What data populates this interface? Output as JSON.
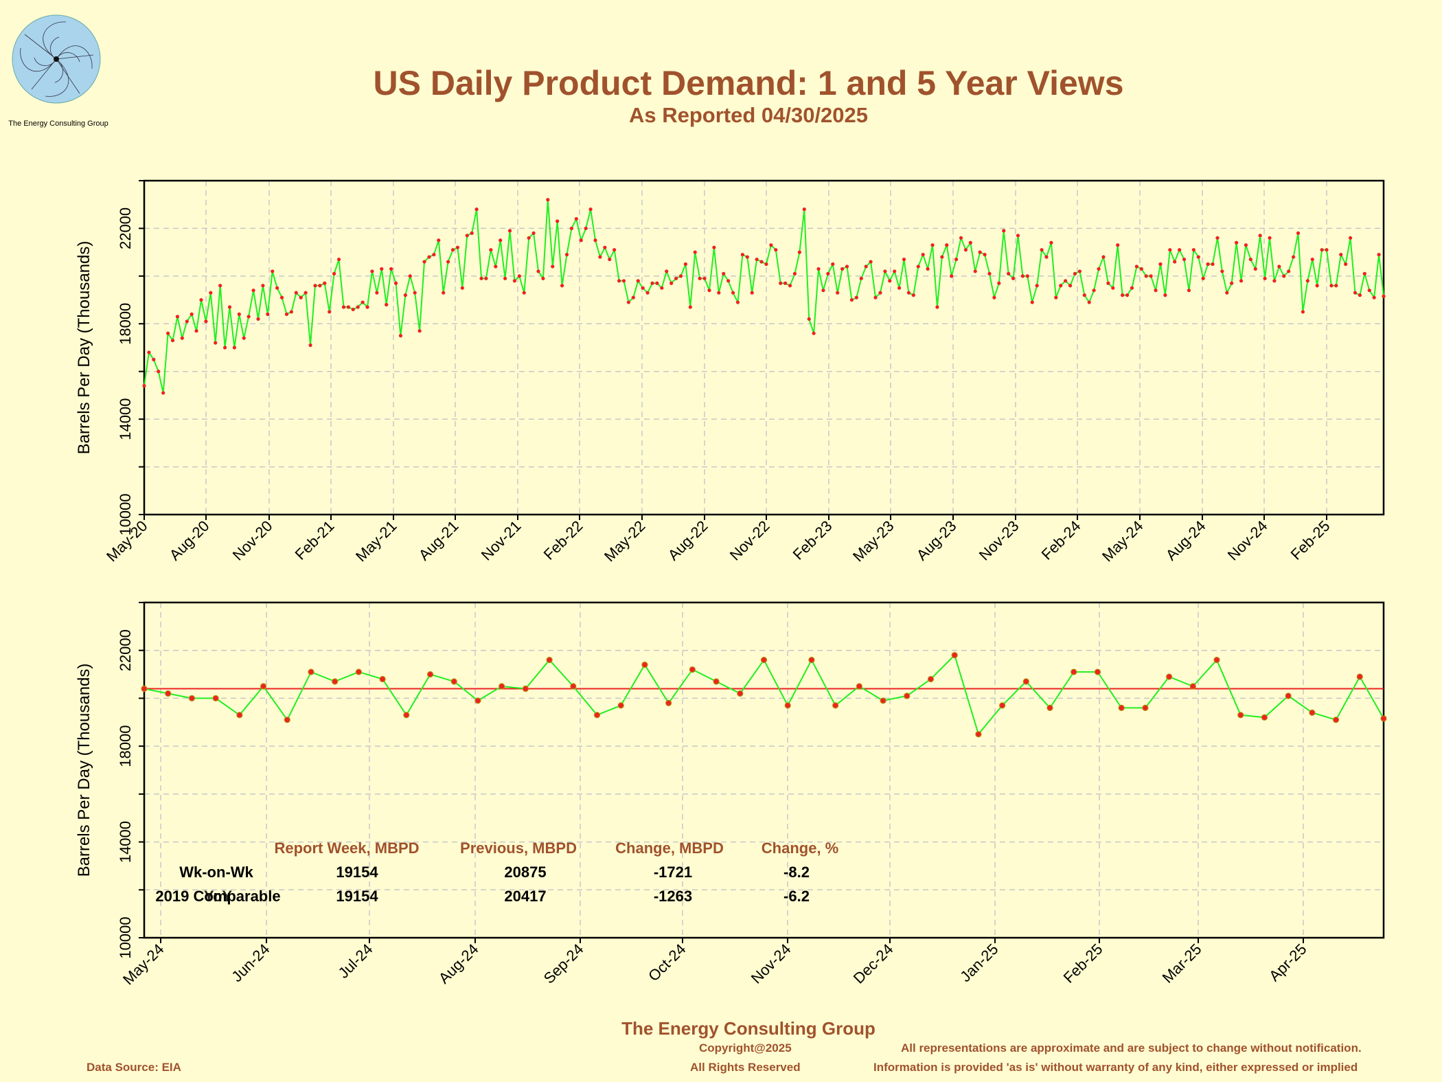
{
  "header": {
    "title": "US Daily Product Demand: 1 and 5 Year Views",
    "subtitle": "As Reported 04/30/2025"
  },
  "logo": {
    "text": "The Energy Consulting Group"
  },
  "colors": {
    "background": "#fffcd1",
    "line": "#22ee22",
    "marker": "#ee2222",
    "reference": "#ee2222",
    "accent": "#a0522d"
  },
  "chart_data": [
    {
      "type": "line",
      "title": "",
      "ylabel": "Barrels Per Day (Thousands)",
      "ylim": [
        10000,
        24000
      ],
      "yticks": [
        10000,
        14000,
        18000,
        22000
      ],
      "xlim": [
        0,
        60
      ],
      "xtick_labels": [
        "May-20",
        "Aug-20",
        "Nov-20",
        "Feb-21",
        "May-21",
        "Aug-21",
        "Nov-21",
        "Feb-22",
        "May-22",
        "Aug-22",
        "Nov-22",
        "Feb-23",
        "May-23",
        "Aug-23",
        "Nov-23",
        "Feb-24",
        "May-24",
        "Aug-24",
        "Nov-24",
        "Feb-25"
      ],
      "grid": true,
      "series": [
        {
          "values": [
            15400,
            16800,
            16500,
            16000,
            15100,
            17600,
            17300,
            18300,
            17400,
            18100,
            18400,
            17700,
            19000,
            18100,
            19300,
            17200,
            19600,
            17000,
            18700,
            17000,
            18400,
            17400,
            18300,
            19400,
            18200,
            19600,
            18400,
            20200,
            19500,
            19100,
            18400,
            18500,
            19300,
            19100,
            19300,
            17100,
            19600,
            19600,
            19700,
            18500,
            20100,
            20700,
            18700,
            18700,
            18600,
            18700,
            18900,
            18700,
            20200,
            19300,
            20300,
            18800,
            20300,
            19700,
            17500,
            19200,
            20000,
            19300,
            17700,
            20600,
            20800,
            20900,
            21500,
            19300,
            20600,
            21100,
            21200,
            19500,
            21700,
            21800,
            22800,
            19900,
            19900,
            21100,
            20400,
            21500,
            19900,
            21900,
            19800,
            20000,
            19300,
            21600,
            21800,
            20200,
            19900,
            23200,
            20400,
            22300,
            19600,
            20900,
            22000,
            22400,
            21500,
            22000,
            22800,
            21500,
            20800,
            21200,
            20700,
            21100,
            19800,
            19800,
            18900,
            19100,
            19800,
            19500,
            19300,
            19700,
            19700,
            19500,
            20200,
            19700,
            19900,
            20000,
            20500,
            18700,
            21000,
            19900,
            19900,
            19400,
            21200,
            19300,
            20100,
            19800,
            19300,
            18900,
            20900,
            20800,
            19300,
            20700,
            20600,
            20500,
            21300,
            21100,
            19700,
            19700,
            19600,
            20100,
            21000,
            22800,
            18200,
            17600,
            20300,
            19400,
            20100,
            20500,
            19300,
            20300,
            20400,
            19000,
            19100,
            19900,
            20400,
            20600,
            19100,
            19300,
            20200,
            19800,
            20200,
            19500,
            20700,
            19300,
            19200,
            20400,
            20900,
            20300,
            21300,
            18700,
            20800,
            21300,
            20000,
            20700,
            21600,
            21100,
            21400,
            20200,
            21000,
            20900,
            20100,
            19100,
            19700,
            21900,
            20100,
            19900,
            21700,
            20000,
            20000,
            18900,
            19600,
            21100,
            20800,
            21400,
            19100,
            19600,
            19800,
            19600,
            20100,
            20200,
            19200,
            18900,
            19400,
            20300,
            20800,
            19700,
            19500,
            21300,
            19200,
            19200,
            19500,
            20400,
            20300,
            20000,
            20000,
            19400,
            20500,
            19200,
            21100,
            20600,
            21100,
            20700,
            19400,
            21100,
            20800,
            19900,
            20500,
            20500,
            21600,
            20200,
            19300,
            19700,
            21400,
            19800,
            21300,
            20700,
            20300,
            21700,
            19900,
            21600,
            19800,
            20400,
            20000,
            20200,
            20800,
            21800,
            18500,
            19800,
            20700,
            19600,
            21100,
            21100,
            19600,
            19600,
            20900,
            20500,
            21600,
            19300,
            19200,
            20100,
            19400,
            19100,
            20900,
            19154
          ]
        }
      ]
    },
    {
      "type": "line",
      "title": "",
      "ylabel": "Barrels Per Day (Thousands)",
      "ylim": [
        10000,
        24000
      ],
      "yticks": [
        10000,
        14000,
        18000,
        22000
      ],
      "xlim": [
        0,
        51.5
      ],
      "xtick_labels": [
        "May-24",
        "Jun-24",
        "Jul-24",
        "Aug-24",
        "Sep-24",
        "Oct-24",
        "Nov-24",
        "Dec-24",
        "Jan-25",
        "Feb-25",
        "Mar-25",
        "Apr-25"
      ],
      "reference_line": 20400,
      "grid": true,
      "series": [
        {
          "values": [
            20400,
            20200,
            20000,
            20000,
            19300,
            20500,
            19100,
            21100,
            20700,
            21100,
            20800,
            19300,
            21000,
            20700,
            19900,
            20500,
            20400,
            21600,
            20500,
            19300,
            19700,
            21400,
            19800,
            21200,
            20700,
            20200,
            21600,
            19700,
            21600,
            19700,
            20500,
            19900,
            20100,
            20800,
            21800,
            18500,
            19700,
            20700,
            19600,
            21100,
            21100,
            19600,
            19600,
            20900,
            20500,
            21600,
            19300,
            19200,
            20100,
            19400,
            19100,
            20900,
            19154
          ]
        }
      ],
      "table": {
        "headers": [
          "Report Week, MBPD",
          "Previous, MBPD",
          "Change, MBPD",
          "Change, %"
        ],
        "rows": [
          {
            "label": "Wk-on-Wk",
            "report": "19154",
            "previous": "20875",
            "change": "-1721",
            "pct": "-8.2"
          },
          {
            "label": "2019 Comparable",
            "label_overlap": "YoY",
            "report": "19154",
            "previous": "20417",
            "change": "-1263",
            "pct": "-6.2"
          }
        ]
      }
    }
  ],
  "footer": {
    "company": "The Energy Consulting Group",
    "copyright": "Copyright@2025",
    "rights": "All Rights Reserved",
    "data_source": "Data Source: EIA",
    "disclaimer1": "All representations are approximate and are subject to change without notification.",
    "disclaimer2": "Information is provided 'as is' without warranty of any kind, either expressed or implied"
  }
}
